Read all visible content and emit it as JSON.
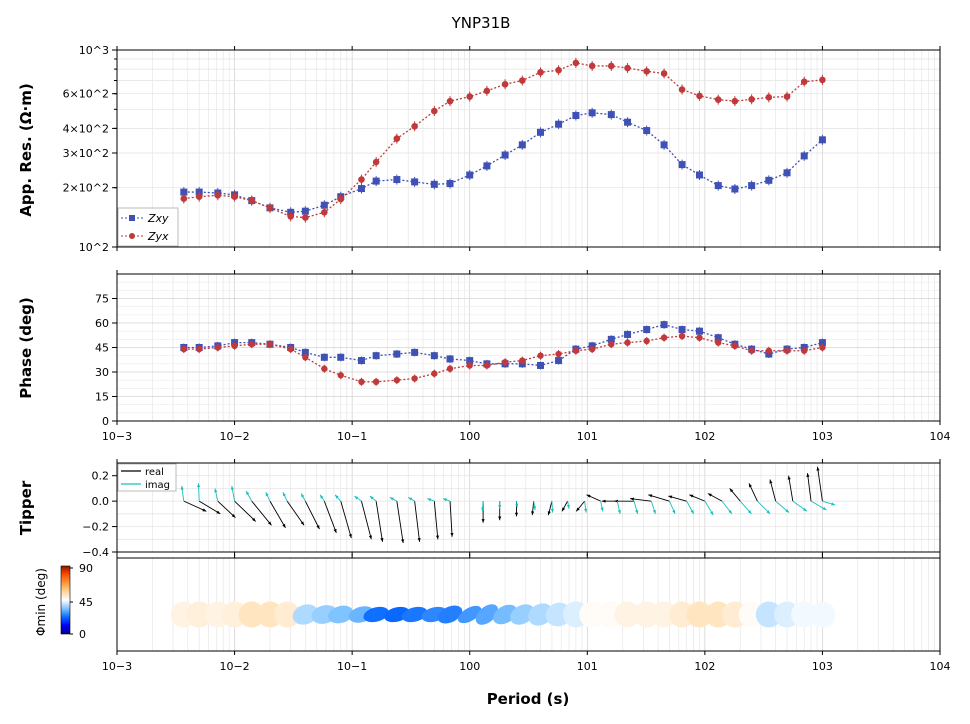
{
  "figure": {
    "title": "YNP31B",
    "xlabel": "Period (s)",
    "x_scale": "log",
    "xlim": [
      0.001,
      10000
    ],
    "x_tick_labels": [
      "10−3",
      "10−2",
      "10−1",
      "100",
      "101",
      "102",
      "103",
      "104"
    ]
  },
  "chart_data": [
    {
      "id": "resistivity",
      "type": "line",
      "ylabel": "App. Res. (Ω·m)",
      "y_scale": "log",
      "ylim": [
        100,
        1000
      ],
      "y_tick_values": [
        100,
        200,
        300,
        400,
        600,
        1000
      ],
      "y_tick_labels": [
        "10^2",
        "2×10^2",
        "3×10^2",
        "4×10^2",
        "6×10^2",
        "10^3"
      ],
      "grid": true,
      "legend_position": "lower-left",
      "x": [
        0.0037,
        0.005,
        0.0072,
        0.01,
        0.014,
        0.02,
        0.03,
        0.04,
        0.058,
        0.08,
        0.12,
        0.16,
        0.24,
        0.34,
        0.5,
        0.68,
        1.0,
        1.4,
        2.0,
        2.8,
        4.0,
        5.7,
        8.0,
        11.0,
        16.0,
        22.0,
        32.0,
        45.0,
        64.0,
        90.0,
        130.0,
        180.0,
        250.0,
        350.0,
        500.0,
        700.0,
        1000.0
      ],
      "series": [
        {
          "name": "Zxy",
          "color": "#3f51b5",
          "marker": "square",
          "values": [
            190,
            190,
            188,
            184,
            172,
            158,
            150,
            152,
            163,
            180,
            198,
            216,
            220,
            214,
            208,
            210,
            232,
            258,
            293,
            330,
            382,
            420,
            465,
            480,
            470,
            430,
            390,
            330,
            262,
            232,
            205,
            197,
            205,
            218,
            238,
            290,
            350
          ]
        },
        {
          "name": "Zyx",
          "color": "#c0393b",
          "marker": "circle",
          "values": [
            176,
            180,
            183,
            180,
            172,
            158,
            143,
            141,
            150,
            175,
            220,
            270,
            355,
            410,
            490,
            550,
            580,
            620,
            670,
            700,
            770,
            790,
            860,
            830,
            830,
            810,
            780,
            760,
            630,
            585,
            560,
            550,
            562,
            575,
            580,
            690,
            705
          ]
        }
      ]
    },
    {
      "id": "phase",
      "type": "line",
      "ylabel": "Phase (deg)",
      "y_scale": "linear",
      "ylim": [
        0,
        90
      ],
      "y_tick_values": [
        0,
        15,
        30,
        45,
        60,
        75
      ],
      "y_tick_labels": [
        "0",
        "15",
        "30",
        "45",
        "60",
        "75"
      ],
      "grid": true,
      "x": [
        0.0037,
        0.005,
        0.0072,
        0.01,
        0.014,
        0.02,
        0.03,
        0.04,
        0.058,
        0.08,
        0.12,
        0.16,
        0.24,
        0.34,
        0.5,
        0.68,
        1.0,
        1.4,
        2.0,
        2.8,
        4.0,
        5.7,
        8.0,
        11.0,
        16.0,
        22.0,
        32.0,
        45.0,
        64.0,
        90.0,
        130.0,
        180.0,
        250.0,
        350.0,
        500.0,
        700.0,
        1000.0
      ],
      "series": [
        {
          "name": "Zxy",
          "color": "#3f51b5",
          "values": [
            45,
            45,
            46,
            48,
            48,
            47,
            45,
            42,
            39,
            39,
            37,
            40,
            41,
            42,
            40,
            38,
            37,
            35,
            35,
            35,
            34,
            37,
            44,
            46,
            50,
            53,
            56,
            59,
            56,
            55,
            51,
            47,
            44,
            41,
            44,
            45,
            48
          ]
        },
        {
          "name": "Zyx",
          "color": "#c0393b",
          "values": [
            44,
            44,
            45,
            46,
            47,
            47,
            44,
            39,
            32,
            28,
            24,
            24,
            25,
            26,
            29,
            32,
            34,
            34,
            36,
            37,
            40,
            41,
            43,
            44,
            47,
            48,
            49,
            51,
            52,
            51,
            48,
            46,
            43,
            43,
            43,
            43,
            45
          ]
        }
      ]
    },
    {
      "id": "tipper",
      "type": "scatter",
      "ylabel": "Tipper",
      "ylim": [
        -0.4,
        0.3
      ],
      "y_tick_values": [
        -0.4,
        -0.2,
        0.0,
        0.2
      ],
      "y_tick_labels": [
        "−0.4",
        "−0.2",
        "0.0",
        "0.2"
      ],
      "grid": true,
      "legend_position": "upper-left",
      "legend": [
        {
          "name": "real",
          "color": "#000000"
        },
        {
          "name": "imag",
          "color": "#17bfbf"
        }
      ],
      "x": [
        0.0037,
        0.005,
        0.0072,
        0.01,
        0.014,
        0.02,
        0.028,
        0.04,
        0.058,
        0.08,
        0.12,
        0.16,
        0.24,
        0.34,
        0.5,
        0.68,
        1.3,
        1.8,
        2.5,
        3.5,
        5.0,
        6.8,
        9.5,
        13.0,
        18.0,
        25.0,
        35.0,
        50.0,
        70.0,
        100.0,
        140.0,
        200.0,
        280.0,
        400.0,
        560.0,
        800.0,
        1000.0
      ],
      "real": [
        [
          0.0037,
          0.0,
          0.32,
          -0.08
        ],
        [
          0.005,
          0.0,
          0.3,
          -0.1
        ],
        [
          0.0072,
          0.0,
          0.25,
          -0.13
        ],
        [
          0.01,
          0.0,
          0.3,
          -0.16
        ],
        [
          0.014,
          0.0,
          0.28,
          -0.19
        ],
        [
          0.02,
          0.0,
          0.22,
          -0.21
        ],
        [
          0.028,
          0.0,
          0.24,
          -0.19
        ],
        [
          0.04,
          0.0,
          0.2,
          -0.22
        ],
        [
          0.058,
          0.0,
          0.17,
          -0.25
        ],
        [
          0.08,
          0.0,
          0.15,
          -0.29
        ],
        [
          0.12,
          0.0,
          0.14,
          -0.3
        ],
        [
          0.16,
          0.0,
          0.09,
          -0.32
        ],
        [
          0.24,
          0.0,
          0.09,
          -0.33
        ],
        [
          0.34,
          0.0,
          0.07,
          -0.32
        ],
        [
          0.5,
          0.0,
          0.05,
          -0.3
        ],
        [
          0.68,
          0.0,
          0.03,
          -0.28
        ],
        [
          1.3,
          0.0,
          0.0,
          -0.17
        ],
        [
          1.8,
          0.0,
          0.0,
          -0.15
        ],
        [
          2.5,
          0.0,
          0.0,
          -0.12
        ],
        [
          3.5,
          0.0,
          -0.02,
          -0.11
        ],
        [
          5.0,
          0.0,
          -0.05,
          -0.11
        ],
        [
          6.8,
          0.0,
          -0.08,
          -0.08
        ],
        [
          9.5,
          0.0,
          -0.12,
          -0.08
        ],
        [
          13.0,
          0.0,
          -0.2,
          0.05
        ],
        [
          18.0,
          0.0,
          -0.22,
          0.0
        ],
        [
          25.0,
          0.0,
          -0.28,
          0.0
        ],
        [
          35.0,
          0.0,
          -0.3,
          0.02
        ],
        [
          50.0,
          0.0,
          -0.3,
          0.05
        ],
        [
          70.0,
          0.0,
          -0.26,
          0.04
        ],
        [
          100.0,
          0.0,
          -0.22,
          0.05
        ],
        [
          140.0,
          0.0,
          -0.2,
          0.06
        ],
        [
          200.0,
          0.0,
          -0.15,
          0.1
        ],
        [
          280.0,
          0.0,
          -0.12,
          0.14
        ],
        [
          400.0,
          0.0,
          -0.08,
          0.17
        ],
        [
          560.0,
          0.0,
          -0.06,
          0.2
        ],
        [
          800.0,
          0.0,
          -0.05,
          0.22
        ],
        [
          1000.0,
          0.0,
          -0.07,
          0.27
        ]
      ],
      "imag": [
        [
          0.0037,
          0.0,
          -0.03,
          0.12
        ],
        [
          0.005,
          0.0,
          -0.01,
          0.14
        ],
        [
          0.0072,
          0.0,
          -0.04,
          0.1
        ],
        [
          0.01,
          0.0,
          -0.04,
          0.12
        ],
        [
          0.014,
          0.0,
          -0.08,
          0.08
        ],
        [
          0.02,
          0.0,
          -0.06,
          0.07
        ],
        [
          0.028,
          0.0,
          -0.06,
          0.07
        ],
        [
          0.04,
          0.0,
          -0.06,
          0.06
        ],
        [
          0.058,
          0.0,
          -0.06,
          0.05
        ],
        [
          0.08,
          0.0,
          -0.08,
          0.05
        ],
        [
          0.12,
          0.0,
          -0.1,
          0.04
        ],
        [
          0.16,
          0.0,
          -0.09,
          0.04
        ],
        [
          0.24,
          0.0,
          -0.1,
          0.03
        ],
        [
          0.34,
          0.0,
          -0.09,
          0.03
        ],
        [
          0.5,
          0.0,
          -0.1,
          0.02
        ],
        [
          0.68,
          0.0,
          -0.1,
          0.02
        ],
        [
          1.3,
          0.0,
          -0.01,
          -0.08
        ],
        [
          1.8,
          0.0,
          0.0,
          -0.06
        ],
        [
          2.5,
          0.0,
          0.01,
          -0.05
        ],
        [
          3.5,
          0.0,
          0.02,
          -0.07
        ],
        [
          5.0,
          0.0,
          0.01,
          -0.09
        ],
        [
          6.8,
          0.0,
          0.02,
          -0.06
        ],
        [
          9.5,
          0.0,
          0.02,
          -0.09
        ],
        [
          13.0,
          0.0,
          0.03,
          -0.08
        ],
        [
          18.0,
          0.0,
          0.04,
          -0.1
        ],
        [
          25.0,
          0.0,
          0.05,
          -0.1
        ],
        [
          35.0,
          0.0,
          0.06,
          -0.1
        ],
        [
          50.0,
          0.0,
          0.08,
          -0.1
        ],
        [
          70.0,
          0.0,
          0.1,
          -0.1
        ],
        [
          100.0,
          0.0,
          0.12,
          -0.11
        ],
        [
          140.0,
          0.0,
          0.14,
          -0.1
        ],
        [
          200.0,
          0.0,
          0.16,
          -0.1
        ],
        [
          280.0,
          0.0,
          0.18,
          -0.1
        ],
        [
          400.0,
          0.0,
          0.19,
          -0.09
        ],
        [
          560.0,
          0.0,
          0.2,
          -0.08
        ],
        [
          800.0,
          0.0,
          0.22,
          -0.07
        ],
        [
          1000.0,
          0.0,
          0.18,
          -0.03
        ]
      ]
    },
    {
      "id": "phase_tensor",
      "type": "scatter",
      "ylabel": "Φmin (deg)",
      "colorbar_ticks": [
        "90",
        "45",
        "0"
      ],
      "colormap": [
        "#00008a",
        "#0000ff",
        "#0a6cff",
        "#7dc3ff",
        "#ffffff",
        "#ffd59a",
        "#ff9a33",
        "#ff4c00",
        "#8a1500"
      ],
      "x": [
        0.0037,
        0.005,
        0.0072,
        0.01,
        0.014,
        0.02,
        0.028,
        0.04,
        0.058,
        0.08,
        0.12,
        0.16,
        0.24,
        0.34,
        0.5,
        0.68,
        1.0,
        1.4,
        2.0,
        2.8,
        4.0,
        5.7,
        8.0,
        11.0,
        16.0,
        22.0,
        32.0,
        45.0,
        64.0,
        90.0,
        130.0,
        180.0,
        250.0,
        350.0,
        500.0,
        700.0,
        1000.0
      ],
      "phimin": [
        48,
        49,
        48,
        49,
        52,
        52,
        50,
        38,
        36,
        34,
        32,
        23,
        22,
        24,
        26,
        25,
        28,
        30,
        33,
        36,
        38,
        40,
        42,
        46,
        46,
        48,
        48,
        48,
        50,
        52,
        52,
        50,
        46,
        40,
        42,
        44,
        44
      ],
      "angle": [
        0,
        0,
        0,
        0,
        0,
        0,
        0,
        -20,
        -15,
        -15,
        -15,
        -15,
        -15,
        -15,
        -15,
        -25,
        -30,
        -40,
        -30,
        -30,
        -30,
        -20,
        0,
        0,
        0,
        0,
        0,
        0,
        0,
        0,
        0,
        0,
        0,
        0,
        0,
        0,
        0
      ],
      "ratio": [
        1,
        1,
        1,
        1,
        1,
        1,
        1,
        0.75,
        0.7,
        0.65,
        0.6,
        0.55,
        0.55,
        0.55,
        0.55,
        0.6,
        0.5,
        0.6,
        0.65,
        0.7,
        0.8,
        0.9,
        1,
        1,
        1,
        1,
        1,
        1,
        1,
        1,
        1,
        1,
        1,
        1,
        1,
        1,
        1
      ]
    }
  ]
}
